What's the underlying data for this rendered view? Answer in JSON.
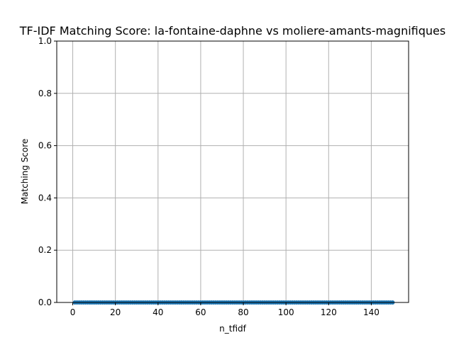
{
  "chart_data": {
    "type": "line",
    "title": "TF-IDF Matching Score: la-fontaine-daphne vs moliere-amants-magnifiques",
    "xlabel": "n_tfidf",
    "ylabel": "Matching Score",
    "xlim": [
      -7.5,
      157.5
    ],
    "ylim": [
      0,
      1
    ],
    "xticks": [
      0,
      20,
      40,
      60,
      80,
      100,
      120,
      140
    ],
    "xtick_labels": [
      "0",
      "20",
      "40",
      "60",
      "80",
      "100",
      "120",
      "140"
    ],
    "yticks": [
      0,
      0.2,
      0.4,
      0.6,
      0.8,
      1.0
    ],
    "ytick_labels": [
      "0.0",
      "0.2",
      "0.4",
      "0.6",
      "0.8",
      "1.0"
    ],
    "grid": true,
    "series": [
      {
        "color": "#1f77b4",
        "marker": "circle",
        "x_start": 1,
        "x_end": 150,
        "x_step": 1,
        "y_constant": 0
      }
    ]
  }
}
